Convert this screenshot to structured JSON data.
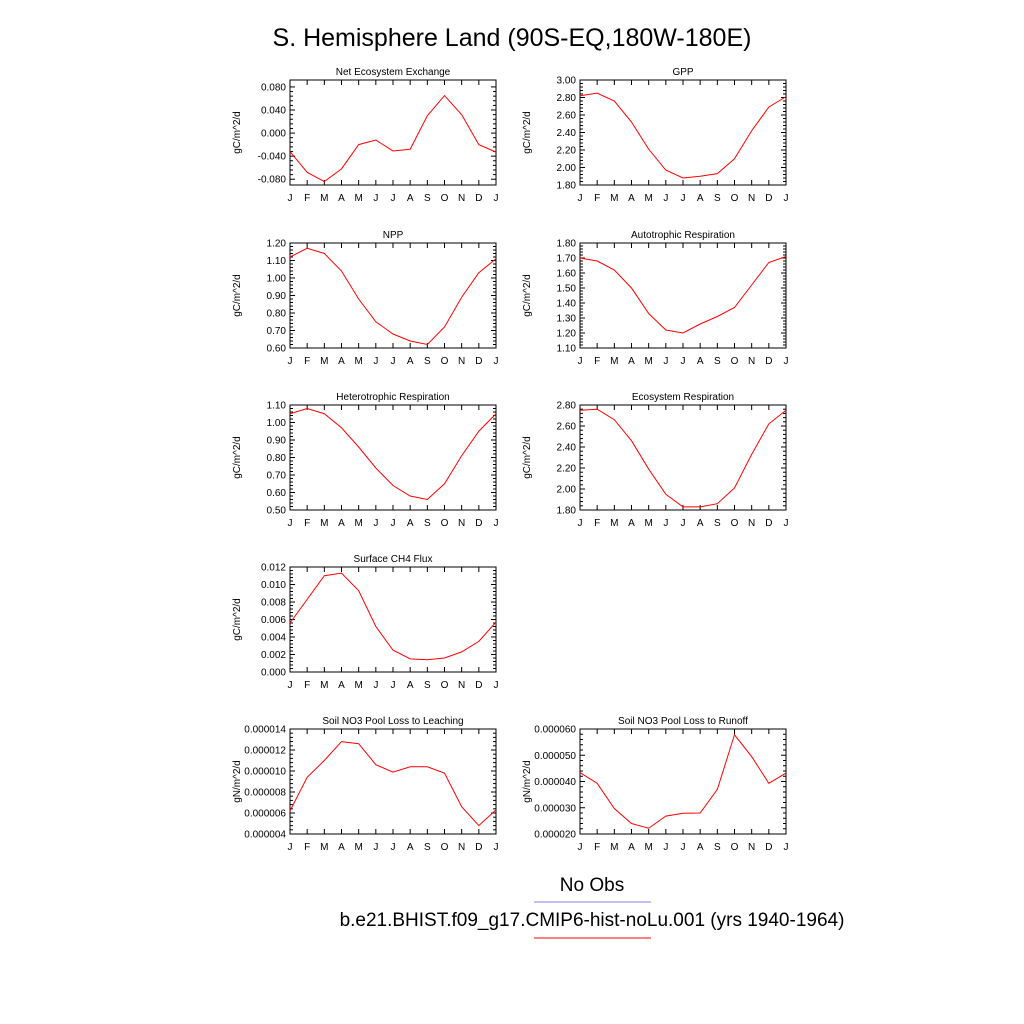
{
  "figure": {
    "title": "S. Hemisphere Land (90S-EQ,180W-180E)",
    "line_color": "#ff0000",
    "obs_color": "#8080ff"
  },
  "legend": {
    "obs_label": "No Obs",
    "model_label": "b.e21.BHIST.f09_g17.CMIP6-hist-noLu.001 (yrs 1940-1964)"
  },
  "chart_data": [
    {
      "type": "line",
      "title": "Net Ecosystem Exchange",
      "ylabel": "gC/m^2/d",
      "x": [
        "J",
        "F",
        "M",
        "A",
        "M",
        "J",
        "J",
        "A",
        "S",
        "O",
        "N",
        "D",
        "J"
      ],
      "ylim": [
        -0.09,
        0.092
      ],
      "yticks": [
        -0.08,
        -0.04,
        0.0,
        0.04,
        0.08
      ],
      "ytick_labels": [
        "-0.080",
        "-0.040",
        "0.000",
        "0.040",
        "0.080"
      ],
      "values": [
        -0.032,
        -0.068,
        -0.084,
        -0.062,
        -0.02,
        -0.012,
        -0.031,
        -0.028,
        0.03,
        0.065,
        0.032,
        -0.02,
        -0.033
      ]
    },
    {
      "type": "line",
      "title": "GPP",
      "ylabel": "gC/m^2/d",
      "x": [
        "J",
        "F",
        "M",
        "A",
        "M",
        "J",
        "J",
        "A",
        "S",
        "O",
        "N",
        "D",
        "J"
      ],
      "ylim": [
        1.8,
        3.0
      ],
      "yticks": [
        1.8,
        2.0,
        2.2,
        2.4,
        2.6,
        2.8,
        3.0
      ],
      "ytick_labels": [
        "1.80",
        "2.00",
        "2.20",
        "2.40",
        "2.60",
        "2.80",
        "3.00"
      ],
      "values": [
        2.82,
        2.85,
        2.76,
        2.52,
        2.21,
        1.97,
        1.88,
        1.9,
        1.93,
        2.1,
        2.42,
        2.69,
        2.81
      ]
    },
    {
      "type": "line",
      "title": "NPP",
      "ylabel": "gC/m^2/d",
      "x": [
        "J",
        "F",
        "M",
        "A",
        "M",
        "J",
        "J",
        "A",
        "S",
        "O",
        "N",
        "D",
        "J"
      ],
      "ylim": [
        0.6,
        1.2
      ],
      "yticks": [
        0.6,
        0.7,
        0.8,
        0.9,
        1.0,
        1.1,
        1.2
      ],
      "ytick_labels": [
        "0.60",
        "0.70",
        "0.80",
        "0.90",
        "1.00",
        "1.10",
        "1.20"
      ],
      "values": [
        1.12,
        1.17,
        1.14,
        1.04,
        0.88,
        0.75,
        0.68,
        0.64,
        0.62,
        0.72,
        0.89,
        1.03,
        1.11
      ]
    },
    {
      "type": "line",
      "title": "Autotrophic Respiration",
      "ylabel": "gC/m^2/d",
      "x": [
        "J",
        "F",
        "M",
        "A",
        "M",
        "J",
        "J",
        "A",
        "S",
        "O",
        "N",
        "D",
        "J"
      ],
      "ylim": [
        1.1,
        1.8
      ],
      "yticks": [
        1.1,
        1.2,
        1.3,
        1.4,
        1.5,
        1.6,
        1.7,
        1.8
      ],
      "ytick_labels": [
        "1.10",
        "1.20",
        "1.30",
        "1.40",
        "1.50",
        "1.60",
        "1.70",
        "1.80"
      ],
      "values": [
        1.7,
        1.68,
        1.62,
        1.5,
        1.33,
        1.22,
        1.2,
        1.26,
        1.31,
        1.37,
        1.52,
        1.67,
        1.71
      ]
    },
    {
      "type": "line",
      "title": "Heterotrophic Respiration",
      "ylabel": "gC/m^2/d",
      "x": [
        "J",
        "F",
        "M",
        "A",
        "M",
        "J",
        "J",
        "A",
        "S",
        "O",
        "N",
        "D",
        "J"
      ],
      "ylim": [
        0.5,
        1.1
      ],
      "yticks": [
        0.5,
        0.6,
        0.7,
        0.8,
        0.9,
        1.0,
        1.1
      ],
      "ytick_labels": [
        "0.50",
        "0.60",
        "0.70",
        "0.80",
        "0.90",
        "1.00",
        "1.10"
      ],
      "values": [
        1.05,
        1.08,
        1.05,
        0.97,
        0.86,
        0.74,
        0.64,
        0.58,
        0.56,
        0.65,
        0.81,
        0.95,
        1.05
      ]
    },
    {
      "type": "line",
      "title": "Ecosystem Respiration",
      "ylabel": "gC/m^2/d",
      "x": [
        "J",
        "F",
        "M",
        "A",
        "M",
        "J",
        "J",
        "A",
        "S",
        "O",
        "N",
        "D",
        "J"
      ],
      "ylim": [
        1.8,
        2.8
      ],
      "yticks": [
        1.8,
        2.0,
        2.2,
        2.4,
        2.6,
        2.8
      ],
      "ytick_labels": [
        "1.80",
        "2.00",
        "2.20",
        "2.40",
        "2.60",
        "2.80"
      ],
      "values": [
        2.75,
        2.76,
        2.66,
        2.46,
        2.19,
        1.95,
        1.83,
        1.83,
        1.86,
        2.01,
        2.33,
        2.62,
        2.75
      ]
    },
    {
      "type": "line",
      "title": "Surface CH4 Flux",
      "ylabel": "gC/m^2/d",
      "x": [
        "J",
        "F",
        "M",
        "A",
        "M",
        "J",
        "J",
        "A",
        "S",
        "O",
        "N",
        "D",
        "J"
      ],
      "ylim": [
        0.0,
        0.012
      ],
      "yticks": [
        0.0,
        0.002,
        0.004,
        0.006,
        0.008,
        0.01,
        0.012
      ],
      "ytick_labels": [
        "0.000",
        "0.002",
        "0.004",
        "0.006",
        "0.008",
        "0.010",
        "0.012"
      ],
      "values": [
        0.0056,
        0.0083,
        0.011,
        0.0113,
        0.0093,
        0.0052,
        0.0025,
        0.0015,
        0.0014,
        0.0016,
        0.0023,
        0.0035,
        0.0057
      ]
    },
    {
      "type": "line",
      "title": "Soil NO3 Pool Loss to Leaching",
      "ylabel": "gN/m^2/d",
      "x": [
        "J",
        "F",
        "M",
        "A",
        "M",
        "J",
        "J",
        "A",
        "S",
        "O",
        "N",
        "D",
        "J"
      ],
      "ylim": [
        4e-06,
        1.4e-05
      ],
      "yticks": [
        4e-06,
        6e-06,
        8e-06,
        1e-05,
        1.2e-05,
        1.4e-05
      ],
      "ytick_labels": [
        "0.000004",
        "0.000006",
        "0.000008",
        "0.000010",
        "0.000012",
        "0.000014"
      ],
      "values": [
        6.2e-06,
        9.4e-06,
        1.1e-05,
        1.28e-05,
        1.26e-05,
        1.06e-05,
        9.9e-06,
        1.04e-05,
        1.04e-05,
        9.8e-06,
        6.6e-06,
        4.8e-06,
        6.3e-06
      ]
    },
    {
      "type": "line",
      "title": "Soil NO3 Pool Loss to Runoff",
      "ylabel": "gN/m^2/d",
      "x": [
        "J",
        "F",
        "M",
        "A",
        "M",
        "J",
        "J",
        "A",
        "S",
        "O",
        "N",
        "D",
        "J"
      ],
      "ylim": [
        2e-05,
        6e-05
      ],
      "yticks": [
        2e-05,
        3e-05,
        4e-05,
        5e-05,
        6e-05
      ],
      "ytick_labels": [
        "0.000020",
        "0.000030",
        "0.000040",
        "0.000050",
        "0.000060"
      ],
      "values": [
        4.34e-05,
        3.93e-05,
        2.97e-05,
        2.4e-05,
        2.22e-05,
        2.68e-05,
        2.79e-05,
        2.8e-05,
        3.7e-05,
        5.78e-05,
        4.95e-05,
        3.93e-05,
        4.32e-05
      ]
    }
  ]
}
